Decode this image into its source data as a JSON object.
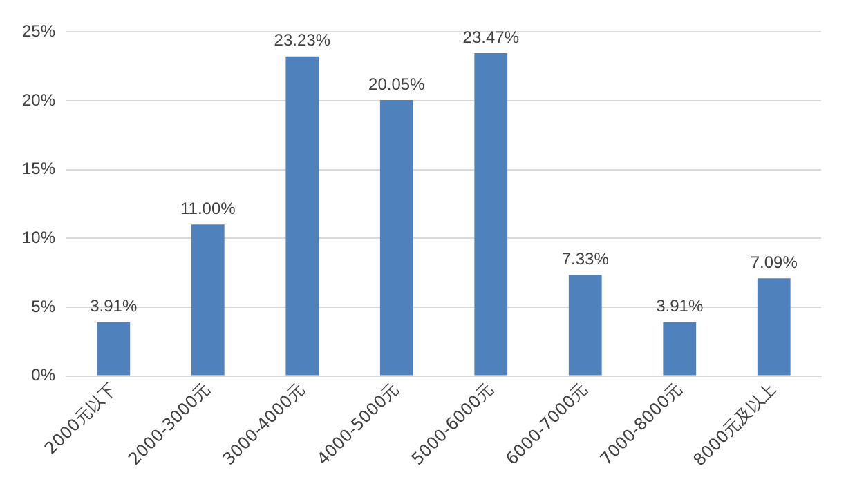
{
  "chart_data": {
    "type": "bar",
    "categories": [
      "2000元以下",
      "2000-3000元",
      "3000-4000元",
      "4000-5000元",
      "5000-6000元",
      "6000-7000元",
      "7000-8000元",
      "8000元及以上"
    ],
    "values": [
      3.91,
      11.0,
      23.23,
      20.05,
      23.47,
      7.33,
      3.91,
      7.09
    ],
    "value_labels": [
      "3.91%",
      "11.00%",
      "23.23%",
      "20.05%",
      "23.47%",
      "7.33%",
      "3.91%",
      "7.09%"
    ],
    "color": "#4f81bd",
    "ylim": [
      0,
      25
    ],
    "yticks": [
      {
        "value": 0,
        "label": "0%"
      },
      {
        "value": 5,
        "label": "5%"
      },
      {
        "value": 10,
        "label": "10%"
      },
      {
        "value": 15,
        "label": "15%"
      },
      {
        "value": 20,
        "label": "20%"
      },
      {
        "value": 25,
        "label": "25%"
      }
    ],
    "grid": "y",
    "legend": false
  }
}
